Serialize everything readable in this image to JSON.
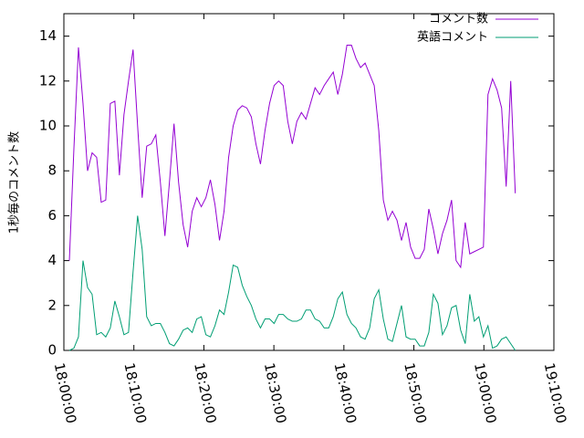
{
  "chart_data": {
    "type": "line",
    "ylabel": "1秒毎のコメント数",
    "xlim": [
      "18:00:00",
      "19:10:00"
    ],
    "xticks": [
      "18:00:00",
      "18:10:00",
      "18:20:00",
      "18:30:00",
      "18:40:00",
      "18:50:00",
      "19:00:00",
      "19:10:00"
    ],
    "ylim": [
      0,
      15
    ],
    "yticks": [
      0,
      2,
      4,
      6,
      8,
      10,
      12,
      14
    ],
    "legend": "top-right",
    "x": [
      "18:00:47",
      "18:01:26",
      "18:02:05",
      "18:02:44",
      "18:03:23",
      "18:04:02",
      "18:04:41",
      "18:05:20",
      "18:05:59",
      "18:06:38",
      "18:07:17",
      "18:07:56",
      "18:08:35",
      "18:09:14",
      "18:09:53",
      "18:10:32",
      "18:11:11",
      "18:11:50",
      "18:12:29",
      "18:13:08",
      "18:13:47",
      "18:14:26",
      "18:15:05",
      "18:15:44",
      "18:16:23",
      "18:17:02",
      "18:17:41",
      "18:18:20",
      "18:18:59",
      "18:19:38",
      "18:20:17",
      "18:20:56",
      "18:21:35",
      "18:22:14",
      "18:22:53",
      "18:23:32",
      "18:24:11",
      "18:24:50",
      "18:25:29",
      "18:26:08",
      "18:26:47",
      "18:27:26",
      "18:28:05",
      "18:28:44",
      "18:29:23",
      "18:30:02",
      "18:30:41",
      "18:31:20",
      "18:31:59",
      "18:32:38",
      "18:33:17",
      "18:33:56",
      "18:34:35",
      "18:35:14",
      "18:35:53",
      "18:36:32",
      "18:37:11",
      "18:37:50",
      "18:38:29",
      "18:39:08",
      "18:39:47",
      "18:40:26",
      "18:41:05",
      "18:41:44",
      "18:42:23",
      "18:43:02",
      "18:43:41",
      "18:44:20",
      "18:44:59",
      "18:45:38",
      "18:46:17",
      "18:46:56",
      "18:47:35",
      "18:48:14",
      "18:48:53",
      "18:49:32",
      "18:50:11",
      "18:50:50",
      "18:51:29",
      "18:52:08",
      "18:52:47",
      "18:53:26",
      "18:54:05",
      "18:54:44",
      "18:55:23",
      "18:56:02",
      "18:56:41",
      "18:57:20",
      "18:57:59",
      "18:58:38",
      "18:59:17",
      "18:59:56",
      "19:00:35",
      "19:01:14",
      "19:01:53",
      "19:02:32",
      "19:03:11",
      "19:03:50",
      "19:04:29"
    ],
    "series": [
      {
        "name": "コメント数",
        "color": "#9400d3",
        "values": [
          4.0,
          9.0,
          13.5,
          11.0,
          8.0,
          8.8,
          8.6,
          6.6,
          6.7,
          11.0,
          11.1,
          7.8,
          10.5,
          12,
          13.4,
          10,
          6.8,
          9.1,
          9.2,
          9.6,
          7.5,
          5.1,
          7.5,
          10.1,
          7.5,
          5.6,
          4.6,
          6.2,
          6.8,
          6.4,
          6.8,
          7.6,
          6.5,
          4.9,
          6.2,
          8.6,
          10.0,
          10.7,
          10.9,
          10.8,
          10.4,
          9.2,
          8.3,
          9.8,
          11.0,
          11.8,
          12.0,
          11.8,
          10.2,
          9.2,
          10.2,
          10.6,
          10.3,
          11.0,
          11.7,
          11.4,
          11.8,
          12.1,
          12.4,
          11.4,
          12.3,
          13.6,
          13.6,
          13.0,
          12.6,
          12.8,
          12.3,
          11.8,
          9.8,
          6.7,
          5.8,
          6.2,
          5.8,
          4.9,
          5.7,
          4.6,
          4.1,
          4.1,
          4.5,
          6.3,
          5.4,
          4.3,
          5.2,
          5.8,
          6.7,
          4.0,
          3.7,
          5.7,
          4.3,
          4.4,
          4.5,
          4.6,
          11.4,
          12.1,
          11.6,
          10.8,
          7.3,
          12.0,
          7.0
        ]
      },
      {
        "name": "英語コメント",
        "color": "#009e73",
        "values": [
          0,
          0.1,
          0.6,
          4.0,
          2.8,
          2.5,
          0.7,
          0.8,
          0.6,
          1.0,
          2.2,
          1.5,
          0.7,
          0.8,
          3.5,
          6.0,
          4.5,
          1.5,
          1.1,
          1.2,
          1.2,
          0.8,
          0.3,
          0.2,
          0.5,
          0.9,
          1.0,
          0.8,
          1.4,
          1.5,
          0.7,
          0.6,
          1.1,
          1.8,
          1.6,
          2.6,
          3.8,
          3.7,
          2.9,
          2.4,
          2.0,
          1.4,
          1.0,
          1.4,
          1.4,
          1.2,
          1.6,
          1.6,
          1.4,
          1.3,
          1.3,
          1.4,
          1.8,
          1.8,
          1.4,
          1.3,
          1.0,
          1.0,
          1.5,
          2.3,
          2.6,
          1.6,
          1.2,
          1.0,
          0.6,
          0.5,
          1.0,
          2.3,
          2.7,
          1.4,
          0.5,
          0.4,
          1.2,
          2.0,
          0.6,
          0.5,
          0.5,
          0.2,
          0.2,
          0.8,
          2.5,
          2.1,
          0.7,
          1.1,
          1.9,
          2.0,
          0.9,
          0.3,
          2.5,
          1.3,
          1.5,
          0.6,
          1.1,
          0.1,
          0.2,
          0.5,
          0.6,
          0.3,
          0.0
        ]
      }
    ]
  }
}
